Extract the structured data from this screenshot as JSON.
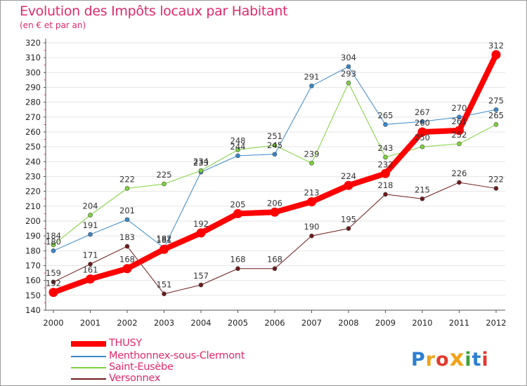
{
  "chart_data": {
    "type": "line",
    "title": "Evolution des Impôts locaux par Habitant",
    "subtitle": "(en € et par an)",
    "xlabel": "",
    "ylabel": "",
    "categories": [
      "2000",
      "2001",
      "2002",
      "2003",
      "2004",
      "2005",
      "2006",
      "2007",
      "2008",
      "2009",
      "2010",
      "2011",
      "2012"
    ],
    "ylim": [
      140,
      320
    ],
    "yticks": [
      "140",
      "150",
      "160",
      "170",
      "180",
      "190",
      "200",
      "210",
      "220",
      "230",
      "240",
      "250",
      "260",
      "270",
      "280",
      "290",
      "300",
      "310",
      "320"
    ],
    "grid": "horizontal",
    "legend_position": "bottom-left",
    "series": [
      {
        "name": "THUSY",
        "color": "#ff0000",
        "values": [
          152,
          161,
          168,
          181,
          192,
          205,
          206,
          213,
          224,
          232,
          260,
          261,
          312
        ]
      },
      {
        "name": "Menthonnex-sous-Clermont",
        "color": "#3b87c8",
        "values": [
          180,
          191,
          201,
          182,
          233,
          244,
          245,
          291,
          304,
          265,
          267,
          270,
          275
        ]
      },
      {
        "name": "Saint-Eusèbe",
        "color": "#7ed33b",
        "values": [
          184,
          204,
          222,
          225,
          234,
          248,
          251,
          239,
          293,
          243,
          250,
          252,
          265
        ]
      },
      {
        "name": "Versonnex",
        "color": "#6e1b1b",
        "values": [
          159,
          171,
          183,
          151,
          157,
          168,
          168,
          190,
          195,
          218,
          215,
          226,
          222
        ]
      }
    ]
  },
  "logo": {
    "text": "Proxiti",
    "letters": [
      "P",
      "r",
      "o",
      "x",
      "i",
      "t",
      "i"
    ],
    "colors": [
      "#2d7fd1",
      "#f0a31c",
      "#e23a2f",
      "#f0a31c",
      "#3aa13a",
      "#2d7fd1",
      "#e23a2f"
    ]
  }
}
